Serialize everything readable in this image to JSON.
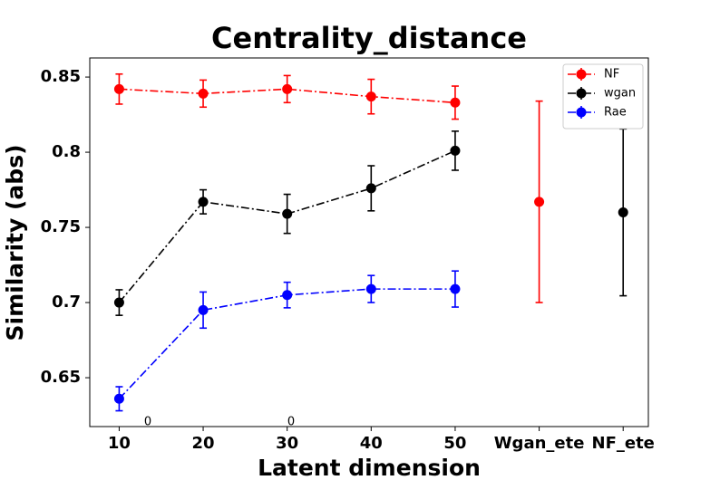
{
  "chart_data": {
    "type": "errorbar_line",
    "title": "Centrality_distance",
    "x_label": "Latent dimension",
    "y_label": "Similarity (abs)",
    "categories": [
      "10",
      "20",
      "30",
      "40",
      "50",
      "Wgan_ete",
      "NF_ete"
    ],
    "xlim": [
      -0.35,
      6.3
    ],
    "ylim": [
      0.6175,
      0.8627
    ],
    "yticks": [
      0.65,
      0.7,
      0.75,
      0.8,
      0.85
    ],
    "legend": "upper right",
    "grid": false,
    "series": [
      {
        "name": "NF",
        "color": "#ff0000",
        "linestyle": "dashdot",
        "values": [
          0.842,
          0.839,
          0.842,
          0.837,
          0.833,
          null,
          null
        ],
        "errors": [
          0.01,
          0.009,
          0.009,
          0.0115,
          0.011,
          null,
          null
        ]
      },
      {
        "name": "wgan",
        "color": "#000000",
        "linestyle": "dashdot",
        "values": [
          0.7,
          0.767,
          0.759,
          0.776,
          0.801,
          null,
          null
        ],
        "errors": [
          0.0085,
          0.008,
          0.013,
          0.015,
          0.013,
          null,
          null
        ]
      },
      {
        "name": "Rae",
        "color": "#0000ff",
        "linestyle": "dashdot",
        "values": [
          0.636,
          0.695,
          0.705,
          0.709,
          0.709,
          null,
          null
        ],
        "errors": [
          0.008,
          0.012,
          0.0085,
          0.009,
          0.012,
          null,
          null
        ]
      },
      {
        "color": "#ff0000",
        "linestyle": "none",
        "values": [
          null,
          null,
          null,
          null,
          null,
          0.767,
          null
        ],
        "errors": [
          null,
          null,
          null,
          null,
          null,
          0.067,
          null
        ]
      },
      {
        "color": "#000000",
        "linestyle": "none",
        "values": [
          null,
          null,
          null,
          null,
          null,
          null,
          0.76
        ],
        "errors": [
          null,
          null,
          null,
          null,
          null,
          null,
          0.0555
        ]
      }
    ],
    "annotations": [
      "0",
      "0"
    ]
  }
}
